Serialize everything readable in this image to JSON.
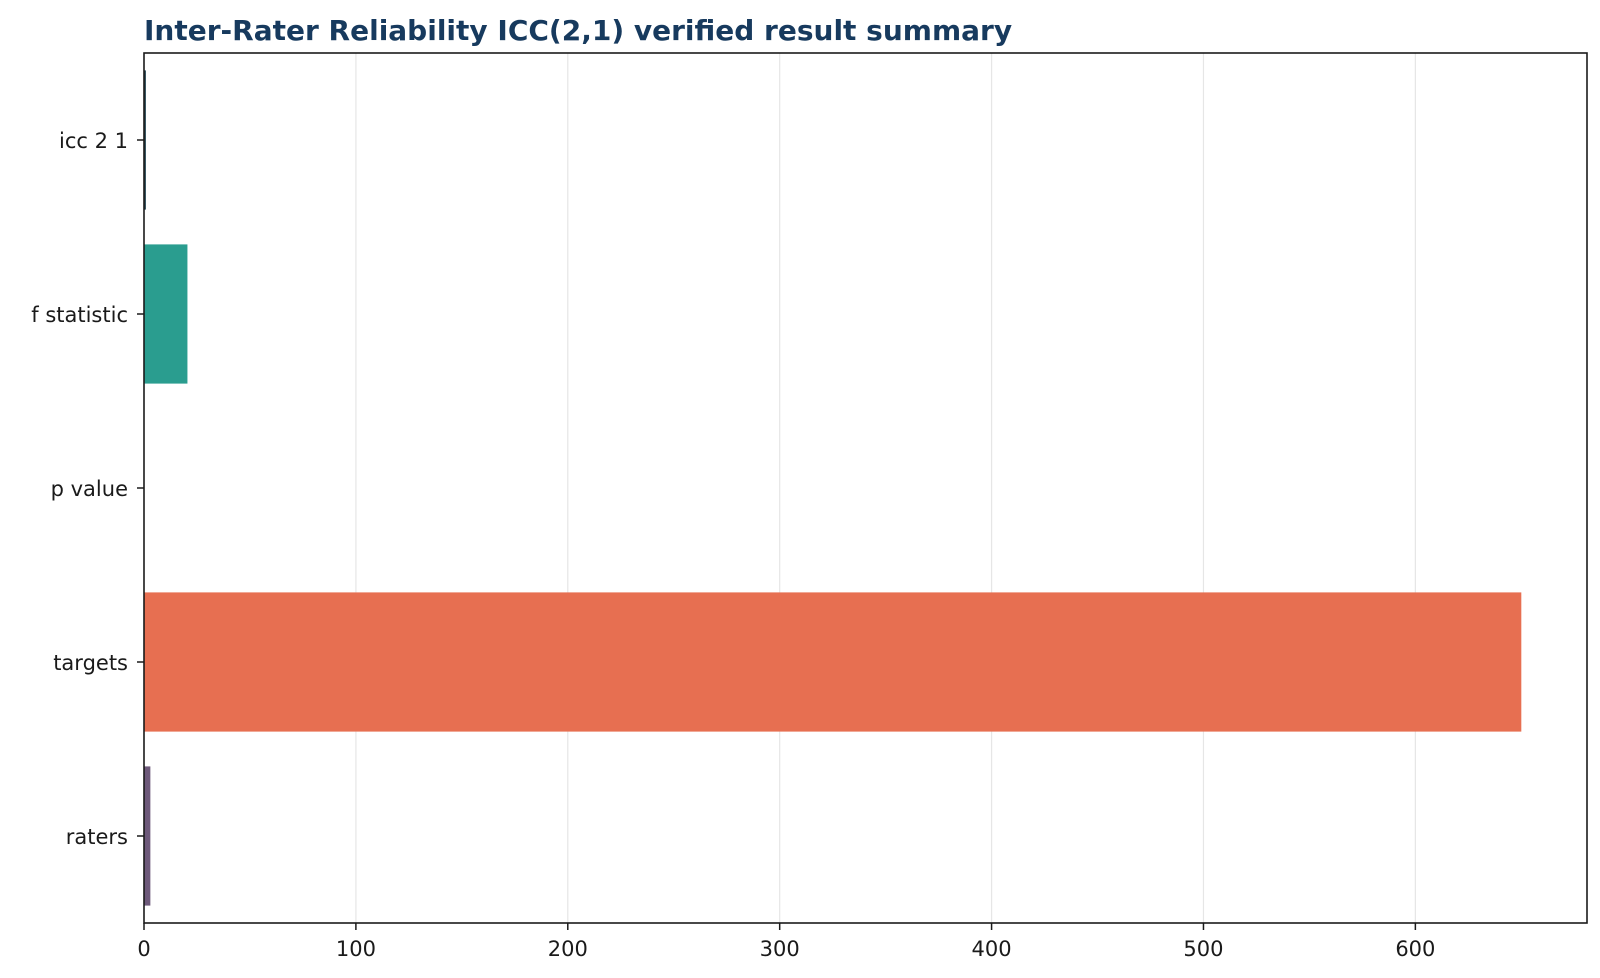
{
  "chart_data": {
    "type": "bar",
    "orientation": "horizontal",
    "title": "Inter-Rater Reliability ICC(2,1) verified result summary",
    "xlabel": "",
    "ylabel": "",
    "categories": [
      "icc 2 1",
      "f statistic",
      "p value",
      "targets",
      "raters"
    ],
    "values": [
      0.9,
      20.5,
      0.0,
      650,
      3
    ],
    "colors": [
      "#264653",
      "#2a9d8f",
      "#e9c46a",
      "#e76f51",
      "#6d597a"
    ],
    "xlim": [
      0,
      681
    ],
    "xticks": [
      0,
      100,
      200,
      300,
      400,
      500,
      600
    ],
    "grid": "vertical",
    "legend": "none"
  }
}
